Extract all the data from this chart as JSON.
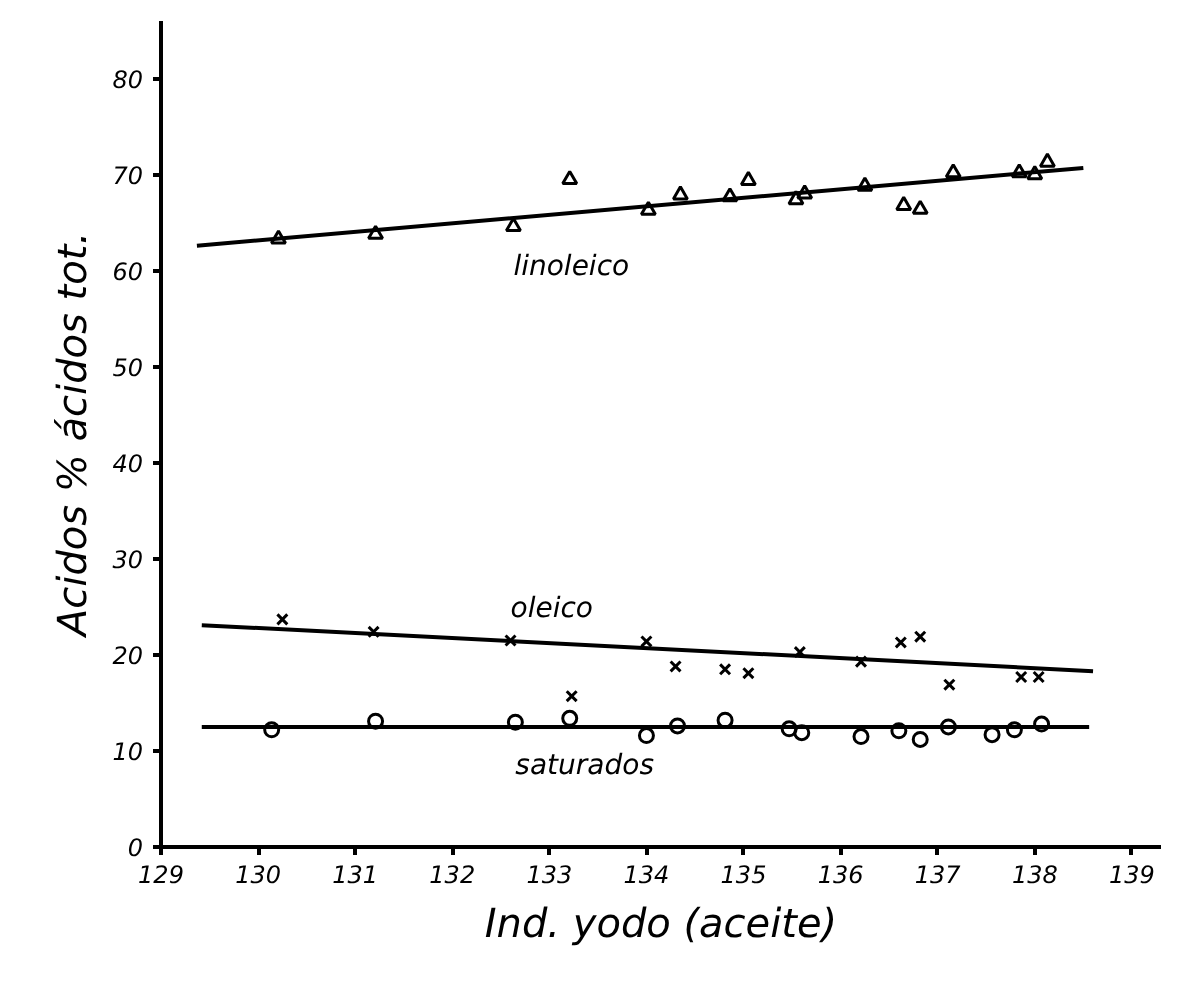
{
  "chart_data": {
    "type": "scatter",
    "xlabel": "Ind. yodo (aceite)",
    "ylabel": "Acidos % ácidos tot.",
    "xlim": [
      129,
      139.3
    ],
    "ylim": [
      0,
      86
    ],
    "xticks": [
      129,
      130,
      131,
      132,
      133,
      134,
      135,
      136,
      137,
      138,
      139
    ],
    "yticks": [
      0,
      10,
      20,
      30,
      40,
      50,
      60,
      70,
      80
    ],
    "grid": false,
    "series": [
      {
        "name": "linoleico",
        "marker": "triangle",
        "color": "#000000",
        "x": [
          130.21,
          131.21,
          132.63,
          133.21,
          134.02,
          134.35,
          134.86,
          135.05,
          135.54,
          135.63,
          136.25,
          136.65,
          136.82,
          137.16,
          137.84,
          138.0,
          138.13
        ],
        "values": [
          63.3,
          63.8,
          64.6,
          69.5,
          66.3,
          67.9,
          67.7,
          69.4,
          67.4,
          68,
          68.8,
          66.8,
          66.4,
          70.2,
          70.2,
          70.0,
          71.3
        ]
      },
      {
        "type": "line",
        "color": "#000000",
        "x": [
          129.37,
          138.5
        ],
        "values": [
          62.6,
          70.7
        ]
      },
      {
        "name": "oleico",
        "marker": "cross",
        "color": "#000000",
        "x": [
          130.25,
          131.19,
          132.6,
          133.23,
          134.0,
          134.3,
          134.81,
          135.05,
          135.58,
          136.21,
          136.62,
          136.82,
          137.12,
          137.86,
          138.04
        ],
        "values": [
          23.7,
          22.4,
          21.5,
          15.7,
          21.4,
          18.8,
          18.5,
          18.1,
          20.3,
          19.3,
          21.3,
          21.9,
          16.9,
          17.7,
          17.7
        ]
      },
      {
        "type": "line",
        "color": "#000000",
        "x": [
          129.42,
          138.6
        ],
        "values": [
          23.1,
          18.3
        ]
      },
      {
        "name": "saturados",
        "marker": "circle",
        "color": "#000000",
        "x": [
          130.14,
          131.21,
          132.65,
          133.21,
          134.0,
          134.32,
          134.81,
          135.47,
          135.6,
          136.21,
          136.6,
          136.82,
          137.11,
          137.56,
          137.79,
          138.07
        ],
        "values": [
          12.2,
          13.1,
          13.0,
          13.4,
          11.6,
          12.6,
          13.2,
          12.3,
          11.9,
          11.5,
          12.1,
          11.2,
          12.5,
          11.7,
          12.2,
          12.8
        ]
      },
      {
        "type": "line",
        "color": "#000000",
        "x": [
          129.42,
          138.56
        ],
        "values": [
          12.5,
          12.5
        ]
      }
    ]
  }
}
